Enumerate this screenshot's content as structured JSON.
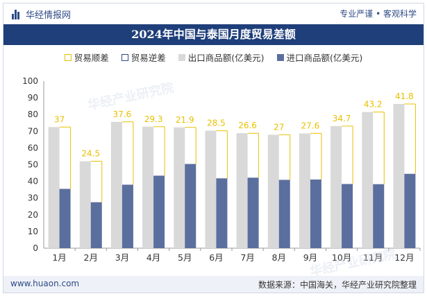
{
  "header": {
    "brand": "华经情报网",
    "slogan": "专业严谨 • 客观科学"
  },
  "title": "2024年中国与泰国月度贸易差额",
  "legend": {
    "surplus": "贸易顺差",
    "deficit": "贸易逆差",
    "export": "出口商品额(亿美元)",
    "import": "进口商品额(亿美元)"
  },
  "footer": {
    "left": "www.huaon.com",
    "right": "数据来源：中国海关，华经产业研究院整理"
  },
  "watermarks": [
    "华经产业研究院",
    "华经产业研究院"
  ],
  "colors": {
    "title_bg": "#1f3f7a",
    "export": "#d9d9d9",
    "import": "#5b6f9e",
    "surplus": "#e8c000",
    "label": "#e8c000"
  },
  "chart_data": {
    "type": "bar",
    "categories": [
      "1月",
      "2月",
      "3月",
      "4月",
      "5月",
      "6月",
      "7月",
      "8月",
      "9月",
      "10月",
      "11月",
      "12月"
    ],
    "series": [
      {
        "name": "出口商品额(亿美元)",
        "values": [
          72.5,
          52.0,
          75.6,
          72.7,
          72.3,
          70.3,
          68.8,
          67.9,
          68.7,
          73.1,
          81.5,
          86.3
        ]
      },
      {
        "name": "进口商品额(亿美元)",
        "values": [
          35.5,
          27.5,
          38.0,
          43.4,
          50.4,
          41.8,
          42.2,
          40.9,
          41.1,
          38.4,
          38.3,
          44.5
        ]
      },
      {
        "name": "贸易顺差",
        "values": [
          37,
          24.5,
          37.6,
          29.3,
          21.9,
          28.5,
          26.6,
          27,
          27.6,
          34.7,
          43.2,
          41.8
        ]
      }
    ],
    "yticks": [
      0,
      10,
      20,
      30,
      40,
      50,
      60,
      70,
      80,
      90,
      100
    ],
    "ylim": [
      0,
      100
    ],
    "grid": false
  }
}
